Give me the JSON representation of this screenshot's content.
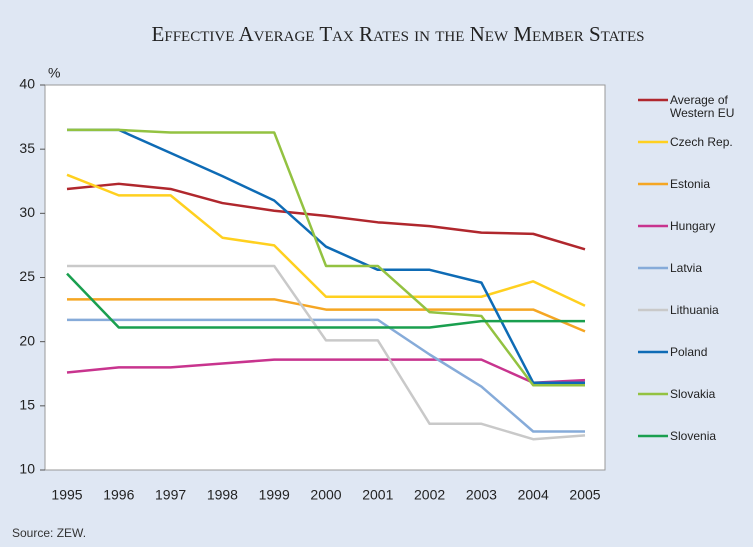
{
  "chart_data": {
    "type": "line",
    "title": "Effective Average Tax Rates in the New Member States",
    "y_label": "%",
    "source": "Source: ZEW.",
    "categories": [
      "1995",
      "1996",
      "1997",
      "1998",
      "1999",
      "2000",
      "2001",
      "2002",
      "2003",
      "2004",
      "2005"
    ],
    "ylim": [
      10,
      40
    ],
    "yticks": [
      10,
      15,
      20,
      25,
      30,
      35,
      40
    ],
    "series": [
      {
        "name": "Average of Western EU",
        "color": "#b0272d",
        "values": [
          31.9,
          32.3,
          31.9,
          30.8,
          30.2,
          29.8,
          29.3,
          29.0,
          28.5,
          28.4,
          27.2
        ]
      },
      {
        "name": "Czech Rep.",
        "color": "#ffd01f",
        "values": [
          33.0,
          31.4,
          31.4,
          28.1,
          27.5,
          23.5,
          23.5,
          23.5,
          23.5,
          24.7,
          22.8
        ]
      },
      {
        "name": "Estonia",
        "color": "#f5a623",
        "values": [
          23.3,
          23.3,
          23.3,
          23.3,
          23.3,
          22.5,
          22.5,
          22.5,
          22.5,
          22.5,
          20.8
        ]
      },
      {
        "name": "Hungary",
        "color": "#c8348e",
        "values": [
          17.6,
          18.0,
          18.0,
          18.3,
          18.6,
          18.6,
          18.6,
          18.6,
          18.6,
          16.8,
          17.0
        ]
      },
      {
        "name": "Latvia",
        "color": "#86abd9",
        "values": [
          21.7,
          21.7,
          21.7,
          21.7,
          21.7,
          21.7,
          21.7,
          19.0,
          16.5,
          13.0,
          13.0
        ]
      },
      {
        "name": "Lithuania",
        "color": "#c9c9c9",
        "values": [
          25.9,
          25.9,
          25.9,
          25.9,
          25.9,
          20.1,
          20.1,
          13.6,
          13.6,
          12.4,
          12.7
        ]
      },
      {
        "name": "Poland",
        "color": "#0e6bb5",
        "values": [
          36.5,
          36.5,
          34.7,
          32.9,
          31.0,
          27.4,
          25.6,
          25.6,
          24.6,
          16.8,
          16.8
        ]
      },
      {
        "name": "Slovakia",
        "color": "#93c241",
        "values": [
          36.5,
          36.5,
          36.3,
          36.3,
          36.3,
          25.9,
          25.9,
          22.3,
          22.0,
          16.6,
          16.6
        ]
      },
      {
        "name": "Slovenia",
        "color": "#1a9f4f",
        "values": [
          25.3,
          21.1,
          21.1,
          21.1,
          21.1,
          21.1,
          21.1,
          21.1,
          21.6,
          21.6,
          21.6
        ]
      }
    ]
  }
}
